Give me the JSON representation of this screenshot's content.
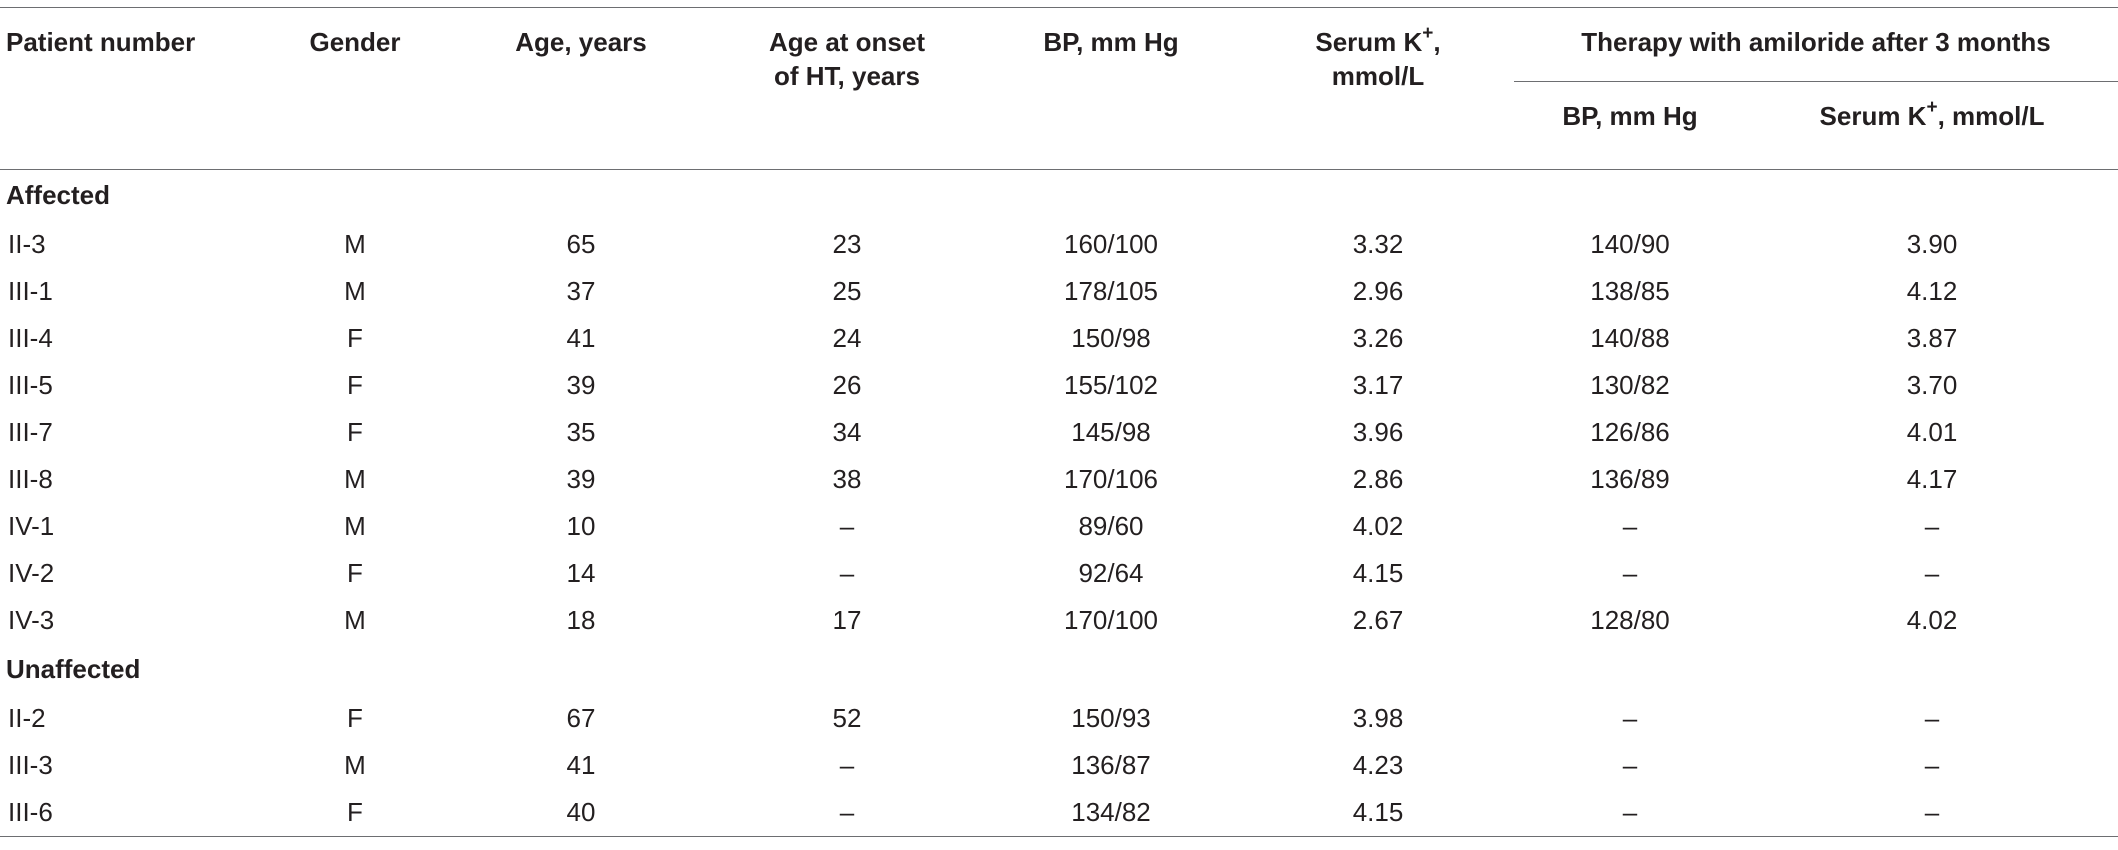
{
  "headers": {
    "patient_number": "Patient number",
    "gender": "Gender",
    "age": "Age, years",
    "age_onset_line1": "Age at onset",
    "age_onset_line2": "of HT, years",
    "bp": "BP, mm Hg",
    "serum_k_prefix": "Serum K",
    "serum_k_sup": "+",
    "serum_k_suffix": ",",
    "serum_k_line2": "mmol/L",
    "therapy": "Therapy with amiloride after 3 months",
    "therapy_bp": "BP, mm Hg",
    "therapy_k_prefix": "Serum K",
    "therapy_k_sup": "+",
    "therapy_k_suffix": ", mmol/L"
  },
  "groups": [
    {
      "label": "Affected",
      "rows": [
        {
          "patient": "II-3",
          "gender": "M",
          "age": "65",
          "onset": "23",
          "bp": "160/100",
          "k": "3.32",
          "t_bp": "140/90",
          "t_k": "3.90"
        },
        {
          "patient": "III-1",
          "gender": "M",
          "age": "37",
          "onset": "25",
          "bp": "178/105",
          "k": "2.96",
          "t_bp": "138/85",
          "t_k": "4.12"
        },
        {
          "patient": "III-4",
          "gender": "F",
          "age": "41",
          "onset": "24",
          "bp": "150/98",
          "k": "3.26",
          "t_bp": "140/88",
          "t_k": "3.87"
        },
        {
          "patient": "III-5",
          "gender": "F",
          "age": "39",
          "onset": "26",
          "bp": "155/102",
          "k": "3.17",
          "t_bp": "130/82",
          "t_k": "3.70"
        },
        {
          "patient": "III-7",
          "gender": "F",
          "age": "35",
          "onset": "34",
          "bp": "145/98",
          "k": "3.96",
          "t_bp": "126/86",
          "t_k": "4.01"
        },
        {
          "patient": "III-8",
          "gender": "M",
          "age": "39",
          "onset": "38",
          "bp": "170/106",
          "k": "2.86",
          "t_bp": "136/89",
          "t_k": "4.17"
        },
        {
          "patient": "IV-1",
          "gender": "M",
          "age": "10",
          "onset": "–",
          "bp": "89/60",
          "k": "4.02",
          "t_bp": "–",
          "t_k": "–"
        },
        {
          "patient": "IV-2",
          "gender": "F",
          "age": "14",
          "onset": "–",
          "bp": "92/64",
          "k": "4.15",
          "t_bp": "–",
          "t_k": "–"
        },
        {
          "patient": "IV-3",
          "gender": "M",
          "age": "18",
          "onset": "17",
          "bp": "170/100",
          "k": "2.67",
          "t_bp": "128/80",
          "t_k": "4.02"
        }
      ]
    },
    {
      "label": "Unaffected",
      "rows": [
        {
          "patient": "II-2",
          "gender": "F",
          "age": "67",
          "onset": "52",
          "bp": "150/93",
          "k": "3.98",
          "t_bp": "–",
          "t_k": "–"
        },
        {
          "patient": "III-3",
          "gender": "M",
          "age": "41",
          "onset": "–",
          "bp": "136/87",
          "k": "4.23",
          "t_bp": "–",
          "t_k": "–"
        },
        {
          "patient": "III-6",
          "gender": "F",
          "age": "40",
          "onset": "–",
          "bp": "134/82",
          "k": "4.15",
          "t_bp": "–",
          "t_k": "–"
        }
      ]
    }
  ]
}
